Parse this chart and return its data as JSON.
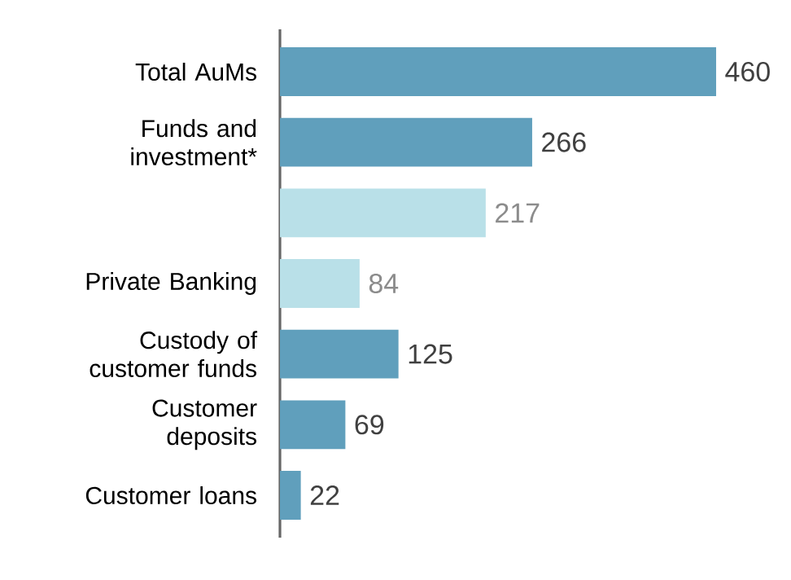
{
  "chart_data": {
    "type": "bar",
    "orientation": "horizontal",
    "categories": [
      "Total AuMs",
      "Funds and investment*",
      null,
      "Private Banking",
      "Custody of customer funds",
      "Customer deposits",
      "Customer loans"
    ],
    "values": [
      460,
      266,
      217,
      84,
      125,
      69,
      22
    ],
    "value_labels": [
      "460",
      "266",
      "217",
      "84",
      "125",
      "69",
      "22"
    ],
    "colors": [
      "#609fbc",
      "#609fbc",
      "#b9e0e8",
      "#b9e0e8",
      "#609fbc",
      "#609fbc",
      "#609fbc"
    ],
    "xlim": [
      0,
      460
    ]
  }
}
